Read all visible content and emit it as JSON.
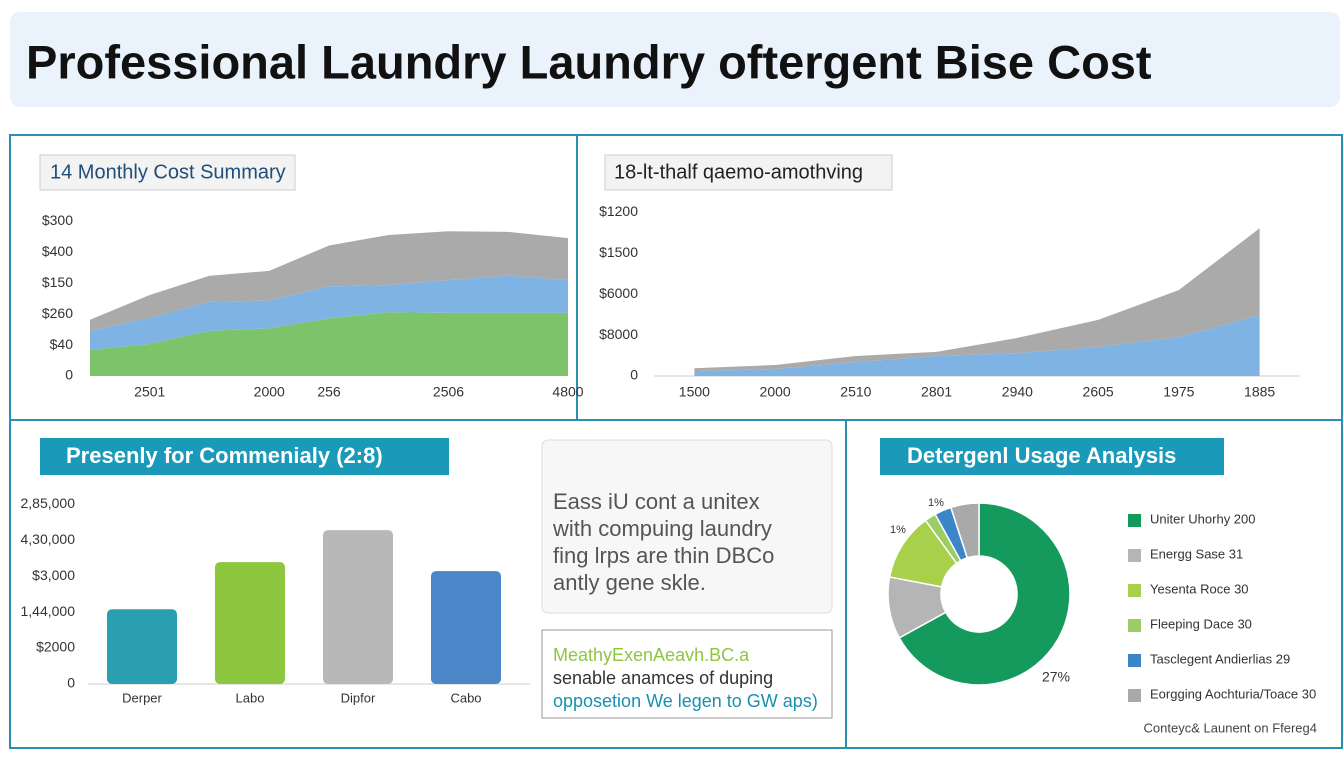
{
  "header": {
    "title": "Professional Laundry Laundry oftergent Bise Cost"
  },
  "chart_data": [
    {
      "type": "area",
      "title": "14 Monthly Cost Summary",
      "categories": [
        null,
        "2501",
        null,
        "2000",
        "256",
        null,
        "2506",
        null,
        "4800"
      ],
      "series": [
        {
          "color": "#7dc36a",
          "values": [
            42,
            52,
            73,
            77,
            93,
            103,
            102,
            102,
            102
          ]
        },
        {
          "color": "#7eb3e3",
          "values": [
            31,
            42,
            47,
            45,
            52,
            44,
            53,
            60,
            53
          ]
        },
        {
          "color": "#aaaaaa",
          "values": [
            18,
            37,
            42,
            48,
            66,
            81,
            79,
            71,
            68
          ]
        }
      ],
      "ylim": [
        0,
        270
      ],
      "yticks": [
        0,
        {
          "value": 50,
          "label": "$40"
        },
        {
          "value": 100,
          "label": "$260"
        },
        {
          "value": 150,
          "label": "$150"
        },
        {
          "value": 200,
          "label": "$400"
        },
        {
          "value": 250,
          "label": "$300"
        }
      ]
    },
    {
      "type": "area",
      "title": "18-lt-thalf qaemo-amothving",
      "categories": [
        "1500",
        "2000",
        "2510",
        "2801",
        "2940",
        "2605",
        "1975",
        "1885"
      ],
      "series": [
        {
          "color": "#7eb3e3",
          "values": [
            12,
            17,
            34,
            49,
            56,
            71,
            95,
            149
          ]
        },
        {
          "color": "#aaaaaa",
          "values": [
            7,
            10,
            15,
            10,
            37,
            66,
            115,
            212
          ]
        }
      ],
      "ylim": [
        0,
        430
      ],
      "yticks": [
        0,
        {
          "value": 100,
          "label": "$8000"
        },
        {
          "value": 200,
          "label": "$6000"
        },
        {
          "value": 300,
          "label": "$1500"
        },
        {
          "value": 400,
          "label": "$1200"
        }
      ]
    },
    {
      "type": "bar",
      "title": "Presenly for Commenialy (2:8)",
      "categories": [
        "Derper",
        "Labo",
        "Dipfor",
        "Cabo"
      ],
      "values": [
        2.08,
        3.39,
        4.28,
        3.14
      ],
      "colors": [
        "#2a9fb0",
        "#8dc63f",
        "#b8b8b8",
        "#4a86c8"
      ],
      "ylim": [
        0,
        5.2
      ],
      "yticks": [
        0,
        {
          "value": 1,
          "label": "$2000"
        },
        {
          "value": 2,
          "label": "1,44,000"
        },
        {
          "value": 3,
          "label": "$3,000"
        },
        {
          "value": 4,
          "label": "4,30,000"
        },
        {
          "value": 5,
          "label": "2,85,000"
        }
      ]
    },
    {
      "type": "pie",
      "title": "Detergenl Usage Analysis",
      "series": [
        {
          "name": "Uniter Uhorhy 200",
          "color": "#149a5c",
          "values": [
            67
          ]
        },
        {
          "name": "Energg Sase 31",
          "color": "#b5b5b5",
          "values": [
            11
          ]
        },
        {
          "name": "Yesenta Roce 30",
          "color": "#a8d04a",
          "values": [
            12
          ]
        },
        {
          "name": "Fleeping Dace 30",
          "color": "#9ccc65",
          "values": [
            2
          ]
        },
        {
          "name": "Tasclegent Andierlias 29",
          "color": "#3a86c6",
          "values": [
            3
          ]
        },
        {
          "name": "Eorgging Aochturia/Toace 30",
          "color": "#a9a9a9",
          "values": [
            5
          ]
        }
      ],
      "annotations": [
        "1%",
        "1%",
        "27%"
      ]
    }
  ],
  "notes": [
    {
      "lines": [
        "Eass iU cont a unitex",
        "with compuing laundry",
        "fing lrps are thin DBCo",
        "antly gene skle."
      ]
    },
    {
      "lines": [
        "MeathyExenAeavh.BC.a",
        "senable anamces of duping",
        "opposetion We legen to GW aps)"
      ]
    }
  ],
  "footer": "Conteyc& Launent on Ffereg4"
}
